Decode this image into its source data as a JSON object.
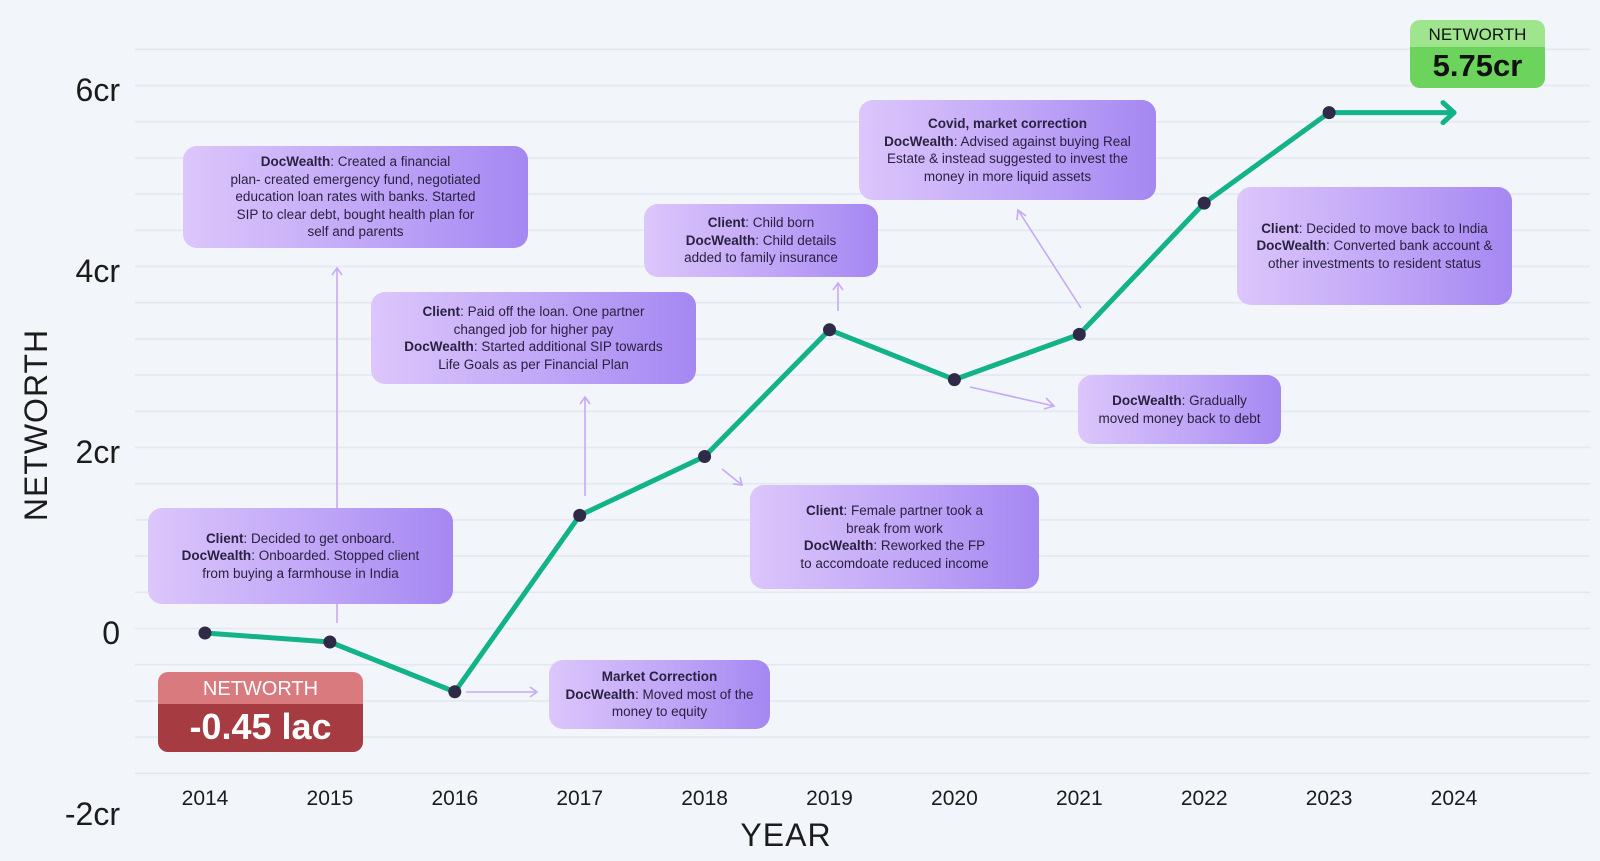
{
  "chart_data": {
    "type": "line",
    "xlabel": "YEAR",
    "ylabel": "NETWORTH",
    "x": [
      "2014",
      "2015",
      "2016",
      "2017",
      "2018",
      "2019",
      "2020",
      "2021",
      "2022",
      "2023",
      "2024"
    ],
    "series": [
      {
        "values": [
          0,
          -0.1,
          -0.65,
          1.3,
          1.95,
          3.35,
          2.8,
          3.3,
          4.75,
          5.75,
          5.75
        ],
        "color": "#12b389"
      }
    ],
    "y_ticks": [
      {
        "value": 6,
        "label": "6cr"
      },
      {
        "value": 4,
        "label": "4cr"
      },
      {
        "value": 2,
        "label": "2cr"
      },
      {
        "value": 0,
        "label": "0"
      },
      {
        "value": -2,
        "label": "-2cr"
      }
    ],
    "ylim": [
      -1.55,
      6.6
    ],
    "grid": true,
    "marker_color": "#2e2a48",
    "annotation_color": "#c7a9f6"
  },
  "badges": {
    "start": {
      "label": "NETWORTH",
      "value": "-0.45 lac"
    },
    "end": {
      "label": "NETWORTH",
      "value": "5.75cr"
    }
  },
  "notes": {
    "n2015": {
      "l1a": "DocWealth",
      "l1b": ": Created a financial",
      "l2": "plan- created emergency fund, negotiated",
      "l3": "education loan rates with banks. Started",
      "l4": "SIP to clear debt, bought health plan for",
      "l5": "self and parents"
    },
    "n2014": {
      "l1a": "Client",
      "l1b": ": Decided to get onboard.",
      "l2a": "DocWealth",
      "l2b": ": Onboarded. Stopped client",
      "l3": "from buying a farmhouse in India"
    },
    "n2017": {
      "l1a": "Client",
      "l1b": ": Paid off the loan. One partner",
      "l2": "changed job for higher pay",
      "l3a": "DocWealth",
      "l3b": ": Started additional SIP towards",
      "l4": "Life Goals as per Financial Plan"
    },
    "n2016": {
      "l1": "Market Correction",
      "l2a": "DocWealth",
      "l2b": ": Moved most of the",
      "l3": "money to equity"
    },
    "n2019": {
      "l1a": "Client",
      "l1b": ": Child born",
      "l2a": "DocWealth",
      "l2b": ": Child details",
      "l3": "added to family insurance"
    },
    "n2018": {
      "l1a": "Client",
      "l1b": ": Female partner took a",
      "l2": "break from work",
      "l3a": "DocWealth",
      "l3b": ": Reworked the FP",
      "l4": "to accomdoate reduced income"
    },
    "n2021": {
      "l1": "Covid, market correction",
      "l2a": "DocWealth",
      "l2b": ":  Advised against buying Real",
      "l3": "Estate & instead suggested to invest the",
      "l4": "money in more liquid assets"
    },
    "n2020": {
      "l1a": "DocWealth",
      "l1b": ": Gradually",
      "l2": "moved money back to debt"
    },
    "n2022": {
      "l1a": "Client",
      "l1b": ": Decided to move back to India",
      "l2a": "DocWealth",
      "l2b": ": Converted bank account &",
      "l3": "other investments to resident status"
    }
  }
}
